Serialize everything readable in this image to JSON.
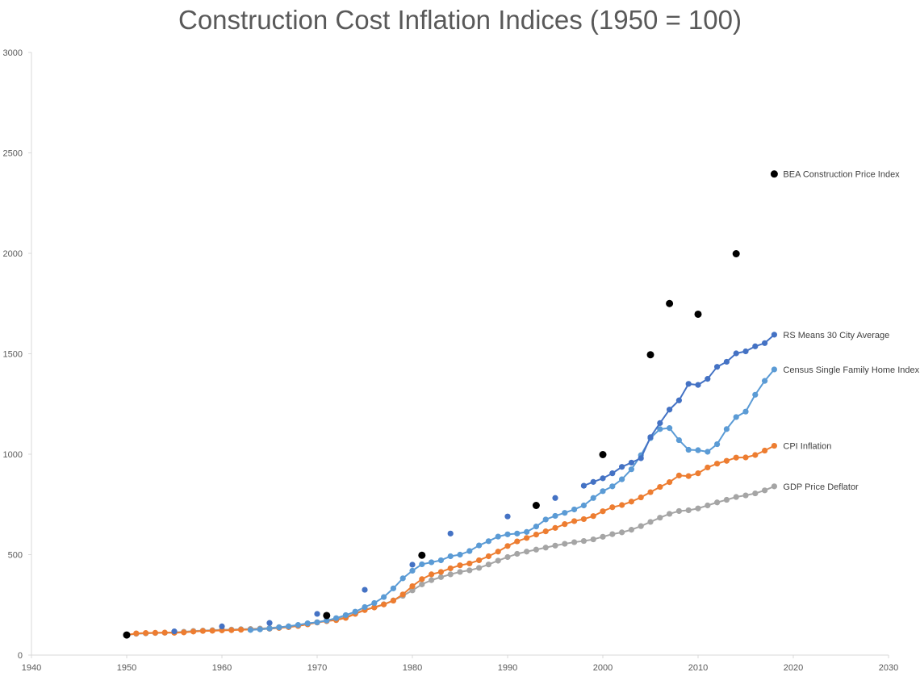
{
  "chart_data": {
    "type": "line",
    "title": "Construction Cost Inflation Indices (1950 = 100)",
    "xlabel": "",
    "ylabel": "",
    "xlim": [
      1940,
      2030
    ],
    "ylim": [
      0,
      3000
    ],
    "x_ticks": [
      1940,
      1950,
      1960,
      1970,
      1980,
      1990,
      2000,
      2010,
      2020,
      2030
    ],
    "y_ticks": [
      0,
      500,
      1000,
      1500,
      2000,
      2500,
      3000
    ],
    "grid": false,
    "legend": "direct labels at right end of each series",
    "series": [
      {
        "name": "GDP Price Deflator",
        "color": "#a5a5a5",
        "style": "line-markers",
        "points": [
          [
            1950,
            100
          ],
          [
            1951,
            106
          ],
          [
            1952,
            108
          ],
          [
            1953,
            110
          ],
          [
            1954,
            111
          ],
          [
            1955,
            113
          ],
          [
            1956,
            116
          ],
          [
            1957,
            120
          ],
          [
            1958,
            122
          ],
          [
            1959,
            124
          ],
          [
            1960,
            126
          ],
          [
            1961,
            127
          ],
          [
            1962,
            129
          ],
          [
            1963,
            130
          ],
          [
            1964,
            132
          ],
          [
            1965,
            135
          ],
          [
            1966,
            139
          ],
          [
            1967,
            143
          ],
          [
            1968,
            149
          ],
          [
            1969,
            156
          ],
          [
            1970,
            164
          ],
          [
            1971,
            172
          ],
          [
            1972,
            179
          ],
          [
            1973,
            189
          ],
          [
            1974,
            207
          ],
          [
            1975,
            226
          ],
          [
            1976,
            238
          ],
          [
            1977,
            253
          ],
          [
            1978,
            272
          ],
          [
            1979,
            295
          ],
          [
            1980,
            322
          ],
          [
            1981,
            352
          ],
          [
            1982,
            373
          ],
          [
            1983,
            388
          ],
          [
            1984,
            402
          ],
          [
            1985,
            414
          ],
          [
            1986,
            422
          ],
          [
            1987,
            434
          ],
          [
            1988,
            451
          ],
          [
            1989,
            470
          ],
          [
            1990,
            488
          ],
          [
            1991,
            504
          ],
          [
            1992,
            515
          ],
          [
            1993,
            525
          ],
          [
            1994,
            535
          ],
          [
            1995,
            545
          ],
          [
            1996,
            554
          ],
          [
            1997,
            562
          ],
          [
            1998,
            568
          ],
          [
            1999,
            576
          ],
          [
            2000,
            589
          ],
          [
            2001,
            602
          ],
          [
            2002,
            611
          ],
          [
            2003,
            624
          ],
          [
            2004,
            642
          ],
          [
            2005,
            663
          ],
          [
            2006,
            684
          ],
          [
            2007,
            703
          ],
          [
            2008,
            717
          ],
          [
            2009,
            721
          ],
          [
            2010,
            730
          ],
          [
            2011,
            745
          ],
          [
            2012,
            760
          ],
          [
            2013,
            773
          ],
          [
            2014,
            787
          ],
          [
            2015,
            795
          ],
          [
            2016,
            805
          ],
          [
            2017,
            820
          ],
          [
            2018,
            840
          ]
        ]
      },
      {
        "name": "CPI Inflation",
        "color": "#ed7d31",
        "style": "line-markers",
        "points": [
          [
            1950,
            100
          ],
          [
            1951,
            108
          ],
          [
            1952,
            110
          ],
          [
            1953,
            111
          ],
          [
            1954,
            112
          ],
          [
            1955,
            111
          ],
          [
            1956,
            113
          ],
          [
            1957,
            117
          ],
          [
            1958,
            120
          ],
          [
            1959,
            121
          ],
          [
            1960,
            123
          ],
          [
            1961,
            124
          ],
          [
            1962,
            126
          ],
          [
            1963,
            127
          ],
          [
            1964,
            129
          ],
          [
            1965,
            131
          ],
          [
            1966,
            135
          ],
          [
            1967,
            139
          ],
          [
            1968,
            145
          ],
          [
            1969,
            153
          ],
          [
            1970,
            162
          ],
          [
            1971,
            169
          ],
          [
            1972,
            174
          ],
          [
            1973,
            185
          ],
          [
            1974,
            205
          ],
          [
            1975,
            224
          ],
          [
            1976,
            237
          ],
          [
            1977,
            252
          ],
          [
            1978,
            271
          ],
          [
            1979,
            302
          ],
          [
            1980,
            343
          ],
          [
            1981,
            378
          ],
          [
            1982,
            402
          ],
          [
            1983,
            414
          ],
          [
            1984,
            432
          ],
          [
            1985,
            447
          ],
          [
            1986,
            456
          ],
          [
            1987,
            472
          ],
          [
            1988,
            492
          ],
          [
            1989,
            515
          ],
          [
            1990,
            543
          ],
          [
            1991,
            566
          ],
          [
            1992,
            583
          ],
          [
            1993,
            600
          ],
          [
            1994,
            616
          ],
          [
            1995,
            633
          ],
          [
            1996,
            652
          ],
          [
            1997,
            667
          ],
          [
            1998,
            677
          ],
          [
            1999,
            692
          ],
          [
            2000,
            716
          ],
          [
            2001,
            736
          ],
          [
            2002,
            747
          ],
          [
            2003,
            764
          ],
          [
            2004,
            785
          ],
          [
            2005,
            811
          ],
          [
            2006,
            837
          ],
          [
            2007,
            861
          ],
          [
            2008,
            894
          ],
          [
            2009,
            891
          ],
          [
            2010,
            905
          ],
          [
            2011,
            934
          ],
          [
            2012,
            953
          ],
          [
            2013,
            967
          ],
          [
            2014,
            983
          ],
          [
            2015,
            984
          ],
          [
            2016,
            996
          ],
          [
            2017,
            1018
          ],
          [
            2018,
            1042
          ]
        ]
      },
      {
        "name": "Census Single Family Home Index",
        "color": "#5b9bd5",
        "style": "line-markers",
        "points": [
          [
            1963,
            125
          ],
          [
            1964,
            128
          ],
          [
            1965,
            132
          ],
          [
            1966,
            138
          ],
          [
            1967,
            143
          ],
          [
            1968,
            150
          ],
          [
            1969,
            158
          ],
          [
            1970,
            163
          ],
          [
            1971,
            172
          ],
          [
            1972,
            184
          ],
          [
            1973,
            199
          ],
          [
            1974,
            216
          ],
          [
            1975,
            239
          ],
          [
            1976,
            259
          ],
          [
            1977,
            289
          ],
          [
            1978,
            332
          ],
          [
            1979,
            382
          ],
          [
            1980,
            420
          ],
          [
            1981,
            452
          ],
          [
            1982,
            462
          ],
          [
            1983,
            472
          ],
          [
            1984,
            492
          ],
          [
            1985,
            500
          ],
          [
            1986,
            518
          ],
          [
            1987,
            546
          ],
          [
            1988,
            567
          ],
          [
            1989,
            590
          ],
          [
            1990,
            601
          ],
          [
            1991,
            605
          ],
          [
            1992,
            613
          ],
          [
            1993,
            640
          ],
          [
            1994,
            675
          ],
          [
            1995,
            693
          ],
          [
            1996,
            708
          ],
          [
            1997,
            725
          ],
          [
            1998,
            745
          ],
          [
            1999,
            782
          ],
          [
            2000,
            816
          ],
          [
            2001,
            840
          ],
          [
            2002,
            875
          ],
          [
            2003,
            925
          ],
          [
            2004,
            995
          ],
          [
            2005,
            1080
          ],
          [
            2006,
            1125
          ],
          [
            2007,
            1130
          ],
          [
            2008,
            1070
          ],
          [
            2009,
            1022
          ],
          [
            2010,
            1020
          ],
          [
            2011,
            1012
          ],
          [
            2012,
            1050
          ],
          [
            2013,
            1125
          ],
          [
            2014,
            1185
          ],
          [
            2015,
            1212
          ],
          [
            2016,
            1296
          ],
          [
            2017,
            1365
          ],
          [
            2018,
            1422
          ]
        ]
      },
      {
        "name": "RS Means 30 City Average",
        "color": "#4472c4",
        "style": "line-markers",
        "points": [
          [
            1998,
            843
          ],
          [
            1999,
            862
          ],
          [
            2000,
            880
          ],
          [
            2001,
            905
          ],
          [
            2002,
            937
          ],
          [
            2003,
            958
          ],
          [
            2004,
            980
          ],
          [
            2005,
            1085
          ],
          [
            2006,
            1155
          ],
          [
            2007,
            1222
          ],
          [
            2008,
            1268
          ],
          [
            2009,
            1350
          ],
          [
            2010,
            1345
          ],
          [
            2011,
            1375
          ],
          [
            2012,
            1435
          ],
          [
            2013,
            1460
          ],
          [
            2014,
            1502
          ],
          [
            2015,
            1512
          ],
          [
            2016,
            1537
          ],
          [
            2017,
            1553
          ],
          [
            2018,
            1595
          ]
        ],
        "early_points": [
          [
            1955,
            118
          ],
          [
            1960,
            143
          ],
          [
            1965,
            160
          ],
          [
            1970,
            205
          ],
          [
            1975,
            325
          ],
          [
            1980,
            450
          ],
          [
            1984,
            605
          ],
          [
            1990,
            690
          ],
          [
            1995,
            782
          ]
        ]
      },
      {
        "name": "BEA Construction Price Index",
        "color": "#000000",
        "style": "markers",
        "points": [
          [
            1950,
            100
          ],
          [
            1971,
            197
          ],
          [
            1981,
            497
          ],
          [
            1993,
            745
          ],
          [
            2000,
            998
          ],
          [
            2005,
            1495
          ],
          [
            2007,
            1750
          ],
          [
            2010,
            1697
          ],
          [
            2014,
            1998
          ],
          [
            2018,
            2395
          ]
        ]
      }
    ]
  }
}
